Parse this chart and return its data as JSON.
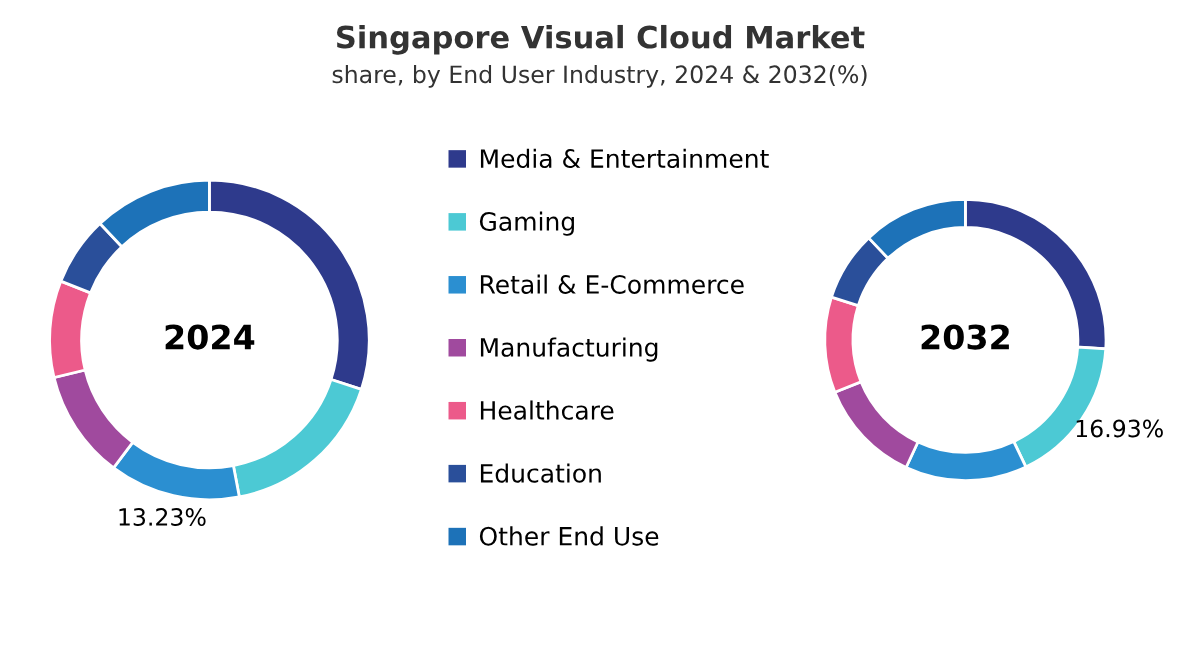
{
  "chart_data": {
    "type": "donut",
    "title": "Singapore Visual Cloud Market",
    "subtitle": "share, by End User Industry, 2024 & 2032(%)",
    "legend": "center",
    "categories": [
      "Media & Entertainment",
      "Gaming",
      "Retail & E-Commerce",
      "Manufacturing",
      "Healthcare",
      "Education",
      "Other End Use"
    ],
    "colors": [
      "#2e3a8c",
      "#4cc9d4",
      "#2b8fd1",
      "#a04a9e",
      "#ec5a8a",
      "#2a4f9a",
      "#1d72b8"
    ],
    "series": [
      {
        "name": "2024",
        "values": [
          30,
          17,
          13.23,
          11,
          9.77,
          7,
          12
        ],
        "value_labels": [
          null,
          null,
          "13.23%",
          null,
          null,
          null,
          null
        ]
      },
      {
        "name": "2032",
        "values": [
          26,
          16.93,
          14,
          12,
          11,
          8,
          12.07
        ],
        "value_labels": [
          null,
          "16.93%",
          null,
          null,
          null,
          null,
          null
        ]
      }
    ]
  }
}
